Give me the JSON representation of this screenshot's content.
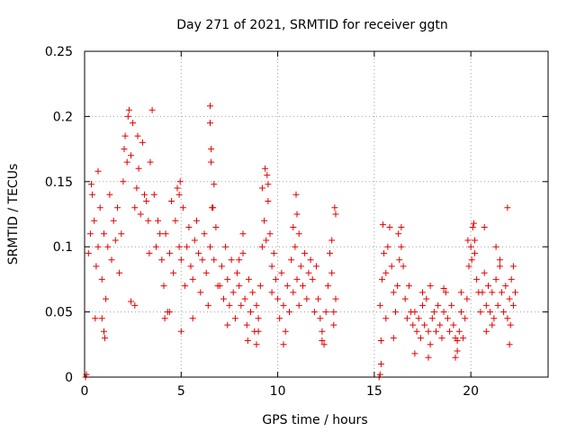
{
  "chart_data": {
    "type": "scatter",
    "title": "Day 271 of 2021, SRMTID for receiver ggtn",
    "xlabel": "GPS time / hours",
    "ylabel": "SRMTID / TECUs",
    "xlim": [
      0,
      24
    ],
    "ylim": [
      0,
      0.25
    ],
    "xticks": [
      0,
      5,
      10,
      15,
      20
    ],
    "xtick_labels": [
      "0",
      "5",
      "10",
      "15",
      "20"
    ],
    "yticks": [
      0,
      0.05,
      0.1,
      0.15,
      0.2,
      0.25
    ],
    "ytick_labels": [
      "0",
      "0.05",
      "0.1",
      "0.15",
      "0.2",
      "0.25"
    ],
    "grid": true,
    "marker": "+",
    "color": "#e60000",
    "series": [
      {
        "name": "SRMTID",
        "points": [
          [
            0.05,
            0.0
          ],
          [
            0.1,
            0.002
          ],
          [
            15.25,
            0.0
          ],
          [
            15.3,
            0.002
          ],
          [
            15.35,
            0.01
          ],
          [
            0.2,
            0.095
          ],
          [
            0.3,
            0.11
          ],
          [
            0.4,
            0.14
          ],
          [
            0.5,
            0.12
          ],
          [
            0.6,
            0.085
          ],
          [
            0.7,
            0.1
          ],
          [
            0.8,
            0.13
          ],
          [
            0.9,
            0.075
          ],
          [
            1.0,
            0.11
          ],
          [
            1.1,
            0.06
          ],
          [
            1.2,
            0.1
          ],
          [
            1.3,
            0.14
          ],
          [
            1.4,
            0.09
          ],
          [
            1.5,
            0.12
          ],
          [
            1.6,
            0.105
          ],
          [
            1.7,
            0.13
          ],
          [
            1.8,
            0.08
          ],
          [
            1.9,
            0.11
          ],
          [
            0.55,
            0.045
          ],
          [
            0.9,
            0.045
          ],
          [
            1.05,
            0.03
          ],
          [
            1.0,
            0.035
          ],
          [
            0.7,
            0.158
          ],
          [
            0.35,
            0.148
          ],
          [
            2.0,
            0.15
          ],
          [
            2.1,
            0.185
          ],
          [
            2.2,
            0.165
          ],
          [
            2.3,
            0.205
          ],
          [
            2.4,
            0.17
          ],
          [
            2.5,
            0.195
          ],
          [
            2.6,
            0.13
          ],
          [
            2.7,
            0.145
          ],
          [
            2.8,
            0.16
          ],
          [
            2.9,
            0.125
          ],
          [
            3.0,
            0.18
          ],
          [
            3.1,
            0.14
          ],
          [
            3.2,
            0.135
          ],
          [
            3.3,
            0.12
          ],
          [
            3.4,
            0.165
          ],
          [
            3.5,
            0.205
          ],
          [
            3.6,
            0.14
          ],
          [
            3.7,
            0.1
          ],
          [
            3.8,
            0.12
          ],
          [
            3.9,
            0.11
          ],
          [
            2.4,
            0.058
          ],
          [
            2.6,
            0.055
          ],
          [
            3.35,
            0.095
          ],
          [
            2.05,
            0.175
          ],
          [
            2.25,
            0.2
          ],
          [
            2.75,
            0.185
          ],
          [
            4.0,
            0.09
          ],
          [
            4.1,
            0.07
          ],
          [
            4.2,
            0.11
          ],
          [
            4.3,
            0.05
          ],
          [
            4.4,
            0.095
          ],
          [
            4.5,
            0.135
          ],
          [
            4.6,
            0.08
          ],
          [
            4.7,
            0.12
          ],
          [
            4.8,
            0.145
          ],
          [
            4.9,
            0.1
          ],
          [
            5.0,
            0.09
          ],
          [
            5.1,
            0.13
          ],
          [
            5.2,
            0.07
          ],
          [
            5.3,
            0.1
          ],
          [
            5.4,
            0.115
          ],
          [
            5.5,
            0.085
          ],
          [
            5.6,
            0.075
          ],
          [
            5.7,
            0.105
          ],
          [
            5.8,
            0.12
          ],
          [
            5.9,
            0.095
          ],
          [
            6.0,
            0.065
          ],
          [
            6.1,
            0.09
          ],
          [
            6.2,
            0.11
          ],
          [
            6.3,
            0.08
          ],
          [
            6.4,
            0.055
          ],
          [
            6.5,
            0.1
          ],
          [
            6.6,
            0.13
          ],
          [
            6.7,
            0.09
          ],
          [
            6.8,
            0.115
          ],
          [
            6.9,
            0.07
          ],
          [
            4.15,
            0.045
          ],
          [
            4.4,
            0.05
          ],
          [
            5.0,
            0.035
          ],
          [
            5.6,
            0.045
          ],
          [
            4.9,
            0.14
          ],
          [
            4.95,
            0.15
          ],
          [
            6.5,
            0.208
          ],
          [
            6.5,
            0.195
          ],
          [
            6.55,
            0.175
          ],
          [
            6.55,
            0.165
          ],
          [
            6.7,
            0.148
          ],
          [
            6.65,
            0.13
          ],
          [
            7.0,
            0.07
          ],
          [
            7.1,
            0.085
          ],
          [
            7.2,
            0.06
          ],
          [
            7.3,
            0.1
          ],
          [
            7.4,
            0.075
          ],
          [
            7.5,
            0.055
          ],
          [
            7.6,
            0.09
          ],
          [
            7.7,
            0.065
          ],
          [
            7.8,
            0.045
          ],
          [
            7.9,
            0.08
          ],
          [
            8.0,
            0.07
          ],
          [
            8.1,
            0.055
          ],
          [
            8.2,
            0.095
          ],
          [
            8.3,
            0.06
          ],
          [
            8.4,
            0.04
          ],
          [
            8.5,
            0.075
          ],
          [
            8.6,
            0.05
          ],
          [
            8.7,
            0.065
          ],
          [
            8.8,
            0.035
          ],
          [
            8.9,
            0.055
          ],
          [
            9.0,
            0.045
          ],
          [
            9.1,
            0.07
          ],
          [
            7.4,
            0.04
          ],
          [
            8.45,
            0.028
          ],
          [
            8.9,
            0.025
          ],
          [
            9.0,
            0.035
          ],
          [
            8.0,
            0.09
          ],
          [
            8.2,
            0.11
          ],
          [
            9.2,
            0.1
          ],
          [
            9.3,
            0.12
          ],
          [
            9.4,
            0.105
          ],
          [
            9.5,
            0.135
          ],
          [
            9.6,
            0.11
          ],
          [
            9.7,
            0.085
          ],
          [
            9.8,
            0.095
          ],
          [
            9.9,
            0.075
          ],
          [
            9.35,
            0.16
          ],
          [
            9.45,
            0.155
          ],
          [
            9.2,
            0.145
          ],
          [
            9.5,
            0.148
          ],
          [
            9.7,
            0.065
          ],
          [
            10.0,
            0.06
          ],
          [
            10.1,
            0.045
          ],
          [
            10.2,
            0.08
          ],
          [
            10.3,
            0.055
          ],
          [
            10.4,
            0.035
          ],
          [
            10.5,
            0.07
          ],
          [
            10.6,
            0.05
          ],
          [
            10.7,
            0.09
          ],
          [
            10.8,
            0.065
          ],
          [
            10.9,
            0.1
          ],
          [
            11.0,
            0.075
          ],
          [
            11.1,
            0.055
          ],
          [
            11.2,
            0.085
          ],
          [
            11.3,
            0.07
          ],
          [
            11.4,
            0.095
          ],
          [
            11.5,
            0.06
          ],
          [
            11.6,
            0.08
          ],
          [
            11.7,
            0.09
          ],
          [
            11.8,
            0.075
          ],
          [
            11.9,
            0.05
          ],
          [
            12.0,
            0.085
          ],
          [
            12.1,
            0.06
          ],
          [
            12.2,
            0.045
          ],
          [
            12.3,
            0.035
          ],
          [
            12.4,
            0.025
          ],
          [
            12.5,
            0.05
          ],
          [
            12.6,
            0.07
          ],
          [
            12.7,
            0.095
          ],
          [
            12.8,
            0.08
          ],
          [
            12.9,
            0.05
          ],
          [
            13.0,
            0.06
          ],
          [
            10.95,
            0.14
          ],
          [
            11.0,
            0.125
          ],
          [
            11.1,
            0.11
          ],
          [
            10.8,
            0.115
          ],
          [
            10.3,
            0.025
          ],
          [
            12.3,
            0.028
          ],
          [
            12.9,
            0.04
          ],
          [
            12.8,
            0.105
          ],
          [
            13.0,
            0.125
          ],
          [
            12.95,
            0.13
          ],
          [
            15.3,
            0.055
          ],
          [
            15.4,
            0.075
          ],
          [
            15.5,
            0.095
          ],
          [
            15.6,
            0.08
          ],
          [
            15.7,
            0.1
          ],
          [
            15.8,
            0.115
          ],
          [
            15.9,
            0.085
          ],
          [
            16.0,
            0.065
          ],
          [
            16.1,
            0.05
          ],
          [
            16.2,
            0.07
          ],
          [
            16.3,
            0.09
          ],
          [
            16.4,
            0.1
          ],
          [
            16.5,
            0.085
          ],
          [
            16.6,
            0.06
          ],
          [
            16.7,
            0.045
          ],
          [
            16.8,
            0.07
          ],
          [
            16.9,
            0.05
          ],
          [
            17.0,
            0.04
          ],
          [
            15.35,
            0.028
          ],
          [
            15.45,
            0.117
          ],
          [
            16.25,
            0.11
          ],
          [
            16.4,
            0.115
          ],
          [
            15.6,
            0.045
          ],
          [
            16.0,
            0.03
          ],
          [
            17.1,
            0.05
          ],
          [
            17.2,
            0.035
          ],
          [
            17.3,
            0.045
          ],
          [
            17.4,
            0.03
          ],
          [
            17.5,
            0.055
          ],
          [
            17.6,
            0.04
          ],
          [
            17.7,
            0.06
          ],
          [
            17.8,
            0.035
          ],
          [
            17.9,
            0.025
          ],
          [
            18.0,
            0.045
          ],
          [
            18.1,
            0.05
          ],
          [
            18.2,
            0.035
          ],
          [
            18.3,
            0.055
          ],
          [
            18.4,
            0.04
          ],
          [
            18.5,
            0.03
          ],
          [
            18.6,
            0.05
          ],
          [
            18.7,
            0.065
          ],
          [
            18.8,
            0.045
          ],
          [
            18.9,
            0.035
          ],
          [
            19.0,
            0.055
          ],
          [
            19.1,
            0.04
          ],
          [
            19.2,
            0.03
          ],
          [
            19.3,
            0.02
          ],
          [
            19.4,
            0.035
          ],
          [
            19.5,
            0.05
          ],
          [
            19.6,
            0.03
          ],
          [
            19.7,
            0.045
          ],
          [
            17.1,
            0.018
          ],
          [
            17.8,
            0.015
          ],
          [
            19.2,
            0.015
          ],
          [
            17.5,
            0.065
          ],
          [
            17.9,
            0.07
          ],
          [
            18.6,
            0.068
          ],
          [
            19.5,
            0.065
          ],
          [
            19.3,
            0.028
          ],
          [
            19.8,
            0.06
          ],
          [
            19.9,
            0.085
          ],
          [
            20.0,
            0.1
          ],
          [
            20.1,
            0.115
          ],
          [
            20.2,
            0.095
          ],
          [
            20.3,
            0.075
          ],
          [
            20.4,
            0.065
          ],
          [
            19.85,
            0.105
          ],
          [
            20.05,
            0.09
          ],
          [
            20.15,
            0.118
          ],
          [
            20.2,
            0.105
          ],
          [
            20.5,
            0.05
          ],
          [
            20.6,
            0.065
          ],
          [
            20.7,
            0.08
          ],
          [
            20.8,
            0.055
          ],
          [
            20.9,
            0.07
          ],
          [
            21.0,
            0.05
          ],
          [
            21.1,
            0.065
          ],
          [
            21.2,
            0.045
          ],
          [
            21.3,
            0.075
          ],
          [
            21.4,
            0.055
          ],
          [
            21.5,
            0.085
          ],
          [
            21.6,
            0.065
          ],
          [
            21.7,
            0.05
          ],
          [
            21.8,
            0.07
          ],
          [
            21.9,
            0.045
          ],
          [
            22.0,
            0.06
          ],
          [
            22.1,
            0.075
          ],
          [
            22.2,
            0.055
          ],
          [
            22.3,
            0.065
          ],
          [
            20.8,
            0.035
          ],
          [
            21.1,
            0.04
          ],
          [
            22.0,
            0.025
          ],
          [
            22.05,
            0.04
          ],
          [
            20.7,
            0.115
          ],
          [
            21.3,
            0.1
          ],
          [
            21.5,
            0.09
          ],
          [
            21.9,
            0.13
          ],
          [
            22.2,
            0.085
          ]
        ]
      }
    ]
  }
}
